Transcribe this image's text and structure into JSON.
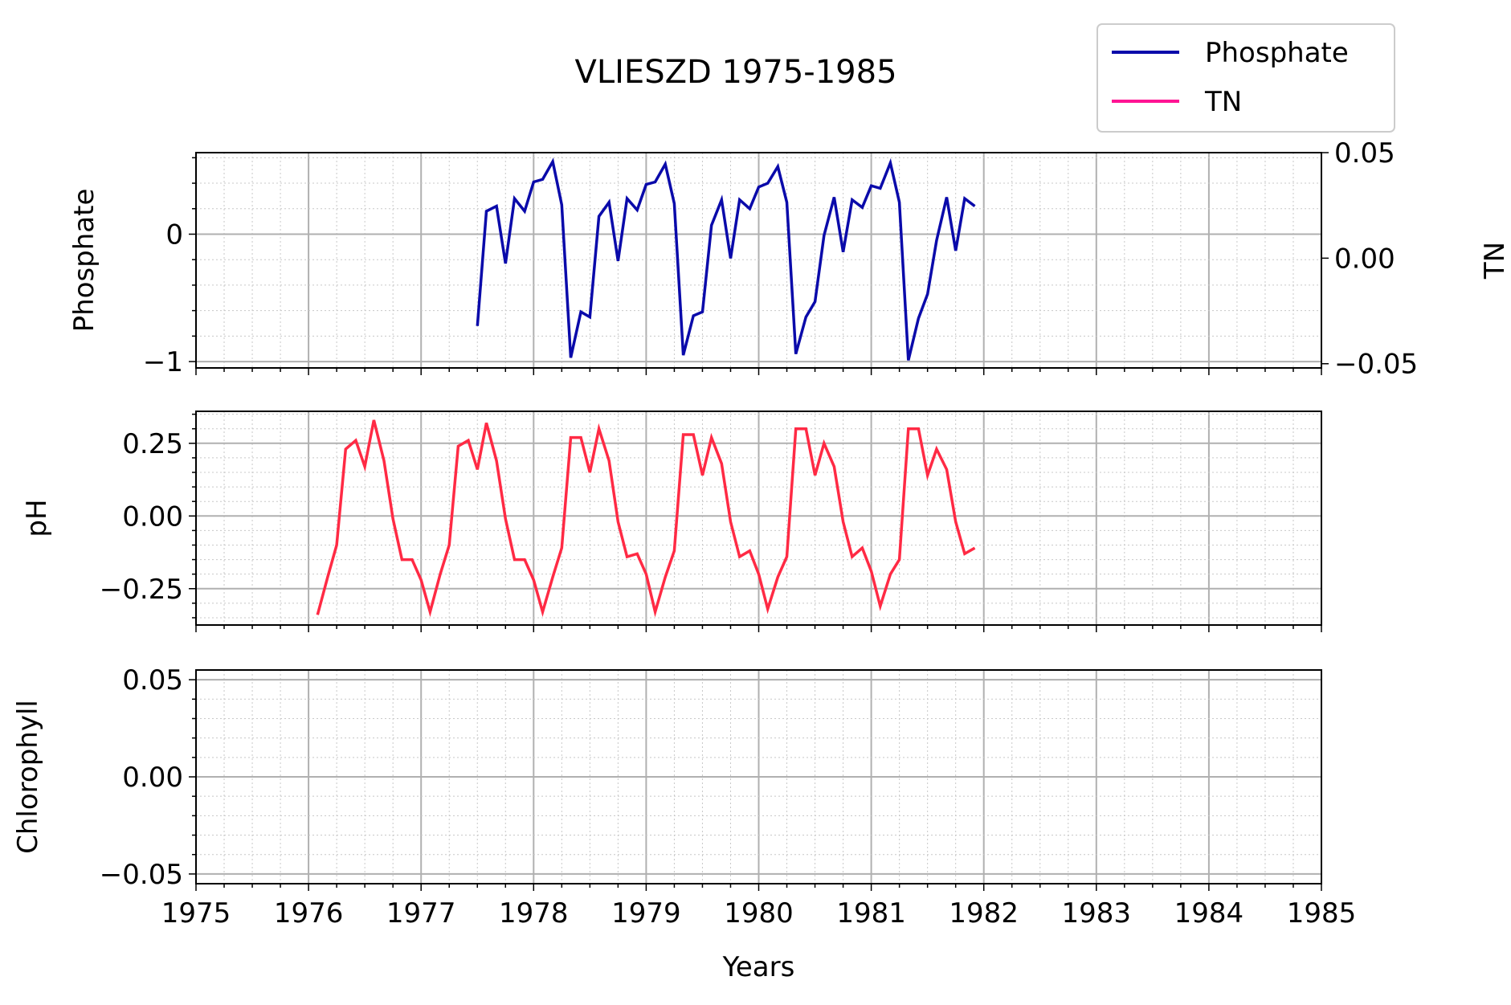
{
  "title": "VLIESZD 1975-1985",
  "legend": {
    "placement": "top-right",
    "entries": [
      {
        "label": "Phosphate",
        "color": "#0a0aaa"
      },
      {
        "label": "TN",
        "color": "#ff1493"
      }
    ]
  },
  "colors": {
    "phosphate": "#0a0aaa",
    "tn": "#ff1493",
    "ph": "#ff2a44"
  },
  "chart_data": [
    {
      "type": "line",
      "ylabel": "Phosphate",
      "y2label": "TN",
      "xlabel": "",
      "xlim": [
        1975,
        1985
      ],
      "ylim": [
        -1.05,
        0.64
      ],
      "y2lim": [
        -0.052,
        0.05
      ],
      "yticks": [
        {
          "value": 0,
          "label": "0"
        },
        {
          "value": -1,
          "label": "−1"
        }
      ],
      "y2ticks": [
        {
          "value": 0.05,
          "label": "0.05"
        },
        {
          "value": 0,
          "label": "0.00"
        },
        {
          "value": -0.05,
          "label": "−0.05"
        }
      ],
      "grid": true,
      "series": [
        {
          "name": "Phosphate",
          "color": "#0a0aaa",
          "x": [
            1977.5,
            1977.58,
            1977.67,
            1977.75,
            1977.83,
            1977.92,
            1978.0,
            1978.08,
            1978.17,
            1978.25,
            1978.33,
            1978.42,
            1978.5,
            1978.58,
            1978.67,
            1978.75,
            1978.83,
            1978.92,
            1979.0,
            1979.08,
            1979.17,
            1979.25,
            1979.33,
            1979.42,
            1979.5,
            1979.58,
            1979.67,
            1979.75,
            1979.83,
            1979.92,
            1980.0,
            1980.08,
            1980.17,
            1980.25,
            1980.33,
            1980.42,
            1980.5,
            1980.58,
            1980.67,
            1980.75,
            1980.83,
            1980.92,
            1981.0,
            1981.08,
            1981.17,
            1981.25,
            1981.33,
            1981.42,
            1981.5,
            1981.58,
            1981.67,
            1981.75,
            1981.83,
            1981.92
          ],
          "y": [
            -0.72,
            0.18,
            0.22,
            -0.23,
            0.28,
            0.18,
            0.41,
            0.43,
            0.57,
            0.23,
            -0.97,
            -0.61,
            -0.65,
            0.14,
            0.25,
            -0.21,
            0.28,
            0.19,
            0.39,
            0.41,
            0.55,
            0.24,
            -0.95,
            -0.64,
            -0.61,
            0.07,
            0.27,
            -0.19,
            0.27,
            0.2,
            0.37,
            0.4,
            0.53,
            0.25,
            -0.94,
            -0.65,
            -0.53,
            -0.01,
            0.29,
            -0.14,
            0.27,
            0.21,
            0.38,
            0.36,
            0.56,
            0.25,
            -0.99,
            -0.66,
            -0.47,
            -0.05,
            0.29,
            -0.13,
            0.28,
            0.22
          ]
        },
        {
          "name": "TN",
          "color": "#ff1493",
          "x": [],
          "y": []
        }
      ]
    },
    {
      "type": "line",
      "ylabel": "pH",
      "xlabel": "",
      "xlim": [
        1975,
        1985
      ],
      "ylim": [
        -0.375,
        0.36
      ],
      "yticks": [
        {
          "value": 0.25,
          "label": "0.25"
        },
        {
          "value": 0,
          "label": "0.00"
        },
        {
          "value": -0.25,
          "label": "−0.25"
        }
      ],
      "grid": true,
      "series": [
        {
          "name": "pH",
          "color": "#ff2a44",
          "x": [
            1976.08,
            1976.17,
            1976.25,
            1976.33,
            1976.42,
            1976.5,
            1976.58,
            1976.67,
            1976.75,
            1976.83,
            1976.92,
            1977.0,
            1977.08,
            1977.17,
            1977.25,
            1977.33,
            1977.42,
            1977.5,
            1977.58,
            1977.67,
            1977.75,
            1977.83,
            1977.92,
            1978.0,
            1978.08,
            1978.17,
            1978.25,
            1978.33,
            1978.42,
            1978.5,
            1978.58,
            1978.67,
            1978.75,
            1978.83,
            1978.92,
            1979.0,
            1979.08,
            1979.17,
            1979.25,
            1979.33,
            1979.42,
            1979.5,
            1979.58,
            1979.67,
            1979.75,
            1979.83,
            1979.92,
            1980.0,
            1980.08,
            1980.17,
            1980.25,
            1980.33,
            1980.42,
            1980.5,
            1980.58,
            1980.67,
            1980.75,
            1980.83,
            1980.92,
            1981.0,
            1981.08,
            1981.17,
            1981.25,
            1981.33,
            1981.42,
            1981.5,
            1981.58,
            1981.67,
            1981.75,
            1981.83,
            1981.92
          ],
          "y": [
            -0.34,
            -0.21,
            -0.1,
            0.23,
            0.26,
            0.17,
            0.33,
            0.19,
            -0.01,
            -0.15,
            -0.15,
            -0.22,
            -0.33,
            -0.2,
            -0.1,
            0.24,
            0.26,
            0.16,
            0.32,
            0.19,
            -0.01,
            -0.15,
            -0.15,
            -0.22,
            -0.33,
            -0.21,
            -0.11,
            0.27,
            0.27,
            0.15,
            0.3,
            0.19,
            -0.02,
            -0.14,
            -0.13,
            -0.2,
            -0.33,
            -0.21,
            -0.12,
            0.28,
            0.28,
            0.14,
            0.27,
            0.18,
            -0.02,
            -0.14,
            -0.12,
            -0.2,
            -0.32,
            -0.21,
            -0.14,
            0.3,
            0.3,
            0.14,
            0.25,
            0.17,
            -0.02,
            -0.14,
            -0.11,
            -0.19,
            -0.31,
            -0.2,
            -0.15,
            0.3,
            0.3,
            0.14,
            0.23,
            0.16,
            -0.02,
            -0.13,
            -0.11
          ]
        }
      ]
    },
    {
      "type": "line",
      "ylabel": "Chlorophyll",
      "xlabel": "Years",
      "xlim": [
        1975,
        1985
      ],
      "ylim": [
        -0.055,
        0.055
      ],
      "yticks": [
        {
          "value": 0.05,
          "label": "0.05"
        },
        {
          "value": 0,
          "label": "0.00"
        },
        {
          "value": -0.05,
          "label": "−0.05"
        }
      ],
      "xticks": [
        "1975",
        "1976",
        "1977",
        "1978",
        "1979",
        "1980",
        "1981",
        "1982",
        "1983",
        "1984",
        "1985"
      ],
      "grid": true,
      "series": []
    }
  ]
}
